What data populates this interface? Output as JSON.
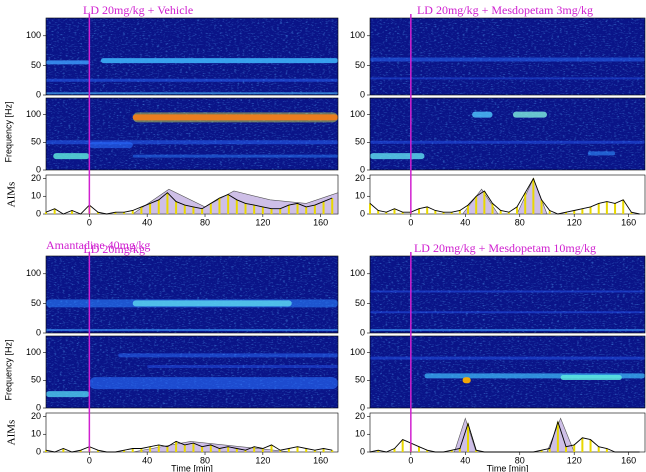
{
  "chart_data": [
    {
      "type": "line",
      "title": "LD 20mg/kg  + Vehicle",
      "ylabel_spectrogram": "Frequency [Hz]",
      "ylabel": "AIMs",
      "xlim": [
        -30,
        172
      ],
      "xticks": [
        0,
        40,
        80,
        120,
        160
      ],
      "ylim": [
        0,
        22
      ],
      "yticks": [
        0,
        10,
        20
      ],
      "spectrogram_ylim": [
        0,
        130
      ],
      "spectrogram_yticks": [
        0,
        50,
        100
      ],
      "series": [
        {
          "color": "#000000",
          "x": [
            -30,
            -24,
            -18,
            -12,
            -6,
            0,
            6,
            12,
            18,
            24,
            30,
            36,
            42,
            48,
            54,
            60,
            66,
            72,
            78,
            84,
            90,
            96,
            102,
            108,
            114,
            120,
            126,
            132,
            138,
            144,
            150,
            156,
            162,
            168
          ],
          "values": [
            1,
            3,
            0,
            2,
            0,
            5,
            1,
            0,
            1,
            1,
            2,
            4,
            6,
            8,
            12,
            7,
            5,
            4,
            3,
            6,
            9,
            11,
            8,
            6,
            5,
            4,
            3,
            3,
            5,
            6,
            4,
            5,
            7,
            9
          ]
        },
        {
          "color": "#a58bd3",
          "x": [
            30,
            55,
            80,
            100,
            125,
            150,
            172
          ],
          "values": [
            0,
            14,
            4,
            13,
            8,
            6,
            12
          ]
        }
      ]
    },
    {
      "type": "line",
      "title": "LD 20mg/kg + Mesdopetam 3mg/kg",
      "xlim": [
        -30,
        172
      ],
      "xticks": [
        0,
        40,
        80,
        120,
        160
      ],
      "ylim": [
        0,
        22
      ],
      "yticks": [
        0,
        10,
        20
      ],
      "spectrogram_ylim": [
        0,
        130
      ],
      "spectrogram_yticks": [
        0,
        50,
        100
      ],
      "series": [
        {
          "color": "#000000",
          "x": [
            -30,
            -24,
            -18,
            -12,
            -6,
            0,
            6,
            12,
            18,
            24,
            30,
            36,
            42,
            48,
            54,
            60,
            66,
            72,
            78,
            84,
            90,
            96,
            102,
            108,
            114,
            120,
            126,
            132,
            138,
            144,
            150,
            156,
            162,
            168
          ],
          "values": [
            6,
            2,
            1,
            3,
            1,
            1,
            3,
            4,
            2,
            1,
            1,
            2,
            5,
            10,
            13,
            6,
            2,
            1,
            4,
            12,
            20,
            8,
            2,
            0,
            1,
            2,
            3,
            4,
            6,
            7,
            6,
            8,
            1,
            0
          ]
        },
        {
          "color": "#a58bd3",
          "x": [
            38,
            52,
            64,
            78,
            90,
            100
          ],
          "values": [
            0,
            14,
            0,
            0,
            20,
            0
          ]
        }
      ]
    },
    {
      "type": "line",
      "title": "Amantadine 40mg/kg",
      "subtitle": "LD 20mg/kg",
      "ylabel_spectrogram": "Frequency [Hz]",
      "ylabel": "AIMs",
      "xlabel": "Time [min]",
      "xlim": [
        -30,
        172
      ],
      "xticks": [
        0,
        40,
        80,
        120,
        160
      ],
      "ylim": [
        0,
        22
      ],
      "yticks": [
        0,
        10,
        20
      ],
      "spectrogram_ylim": [
        0,
        130
      ],
      "spectrogram_yticks": [
        0,
        50,
        100
      ],
      "series": [
        {
          "color": "#000000",
          "x": [
            -30,
            -24,
            -18,
            -12,
            -6,
            0,
            6,
            12,
            18,
            24,
            30,
            36,
            42,
            48,
            54,
            60,
            66,
            72,
            78,
            84,
            90,
            96,
            102,
            108,
            114,
            120,
            126,
            132,
            138,
            144,
            150,
            156,
            162,
            168
          ],
          "values": [
            1,
            0,
            2,
            0,
            1,
            3,
            1,
            0,
            0,
            1,
            2,
            2,
            3,
            4,
            3,
            6,
            4,
            5,
            3,
            4,
            2,
            3,
            2,
            1,
            3,
            2,
            4,
            1,
            2,
            3,
            2,
            1,
            2,
            1
          ]
        },
        {
          "color": "#a58bd3",
          "x": [
            30,
            70,
            140
          ],
          "values": [
            0,
            6,
            0
          ]
        }
      ]
    },
    {
      "type": "line",
      "title": "LD 20mg/kg + Mesdopetam 10mg/kg",
      "xlabel": "Time [min]",
      "xlim": [
        -30,
        172
      ],
      "xticks": [
        0,
        40,
        80,
        120,
        160
      ],
      "ylim": [
        0,
        22
      ],
      "yticks": [
        0,
        10,
        20
      ],
      "spectrogram_ylim": [
        0,
        130
      ],
      "spectrogram_yticks": [
        0,
        50,
        100
      ],
      "series": [
        {
          "color": "#000000",
          "x": [
            -30,
            -24,
            -18,
            -12,
            -6,
            0,
            6,
            12,
            18,
            24,
            30,
            36,
            42,
            48,
            54,
            60,
            66,
            72,
            78,
            84,
            90,
            96,
            102,
            108,
            114,
            120,
            126,
            132,
            138,
            144,
            150,
            156,
            162,
            168
          ],
          "values": [
            0,
            1,
            0,
            2,
            7,
            5,
            3,
            1,
            0,
            0,
            1,
            2,
            16,
            1,
            0,
            0,
            0,
            0,
            0,
            0,
            0,
            1,
            2,
            17,
            3,
            4,
            8,
            7,
            3,
            2,
            0,
            0,
            0,
            0
          ]
        },
        {
          "color": "#a58bd3",
          "x": [
            32,
            40,
            48,
            100,
            110,
            120
          ],
          "values": [
            0,
            19,
            0,
            0,
            19,
            0
          ]
        }
      ]
    }
  ]
}
